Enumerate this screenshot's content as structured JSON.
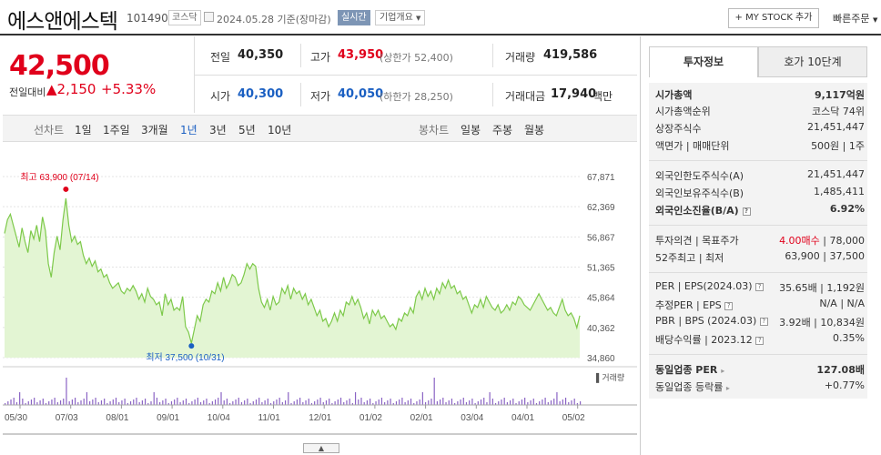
{
  "header": {
    "title": "에스앤에스텍",
    "code": "101490",
    "market": "코스닥",
    "date": "2024.05.28 기준(장마감)",
    "realtime": "실시간",
    "company_overview": "기업개요",
    "mystock": "+ MY STOCK 추가",
    "quick_order": "빠른주문"
  },
  "quote": {
    "price": "42,500",
    "change_label": "전일대비",
    "change_value": "▲2,150",
    "change_pct": "+5.33%",
    "prev_close_label": "전일",
    "prev_close": "40,350",
    "high_label": "고가",
    "high": "43,950",
    "upper_limit": "(상한가 52,400)",
    "volume_label": "거래량",
    "volume": "419,586",
    "open_label": "시가",
    "open": "40,300",
    "low_label": "저가",
    "low": "40,050",
    "lower_limit": "(하한가 28,250)",
    "amount_label": "거래대금",
    "amount": "17,940",
    "amount_unit": "백만"
  },
  "tabs": {
    "line_chart": "선차트",
    "d1": "1일",
    "w1": "1주일",
    "m3": "3개월",
    "y1": "1년",
    "y3": "3년",
    "y5": "5년",
    "y10": "10년",
    "candle": "봉차트",
    "daily": "일봉",
    "weekly": "주봉",
    "monthly": "월봉"
  },
  "chart_data": {
    "type": "area",
    "yticks": [
      "67,871",
      "62,369",
      "56,867",
      "51,365",
      "45,864",
      "40,362",
      "34,860"
    ],
    "ylim": [
      34860,
      67871
    ],
    "xticks": [
      "05/30",
      "07/03",
      "08/01",
      "09/01",
      "10/04",
      "11/01",
      "12/01",
      "01/02",
      "02/01",
      "03/04",
      "04/01",
      "05/02"
    ],
    "high_annotation": "최고 63,900 (07/14)",
    "low_annotation": "최저 37,500 (10/31)",
    "volume_label": "거래량",
    "line_color": "#7dc94a",
    "fill_color": "#e3f5d3",
    "values": [
      57500,
      60000,
      61000,
      59000,
      57000,
      55000,
      58500,
      56000,
      54000,
      58000,
      56500,
      59000,
      56000,
      60500,
      58000,
      52000,
      49500,
      54000,
      57000,
      54500,
      60000,
      63900,
      59000,
      56000,
      57000,
      55500,
      56000,
      53500,
      52000,
      53000,
      51500,
      52500,
      50500,
      51000,
      49500,
      50000,
      48500,
      47500,
      48000,
      48500,
      47000,
      46500,
      47500,
      47000,
      48000,
      47000,
      45500,
      46500,
      45000,
      47500,
      46000,
      45500,
      44500,
      45000,
      42500,
      46500,
      44500,
      45500,
      43500,
      44000,
      43500,
      46000,
      40500,
      39500,
      37500,
      40000,
      42500,
      41500,
      44500,
      45500,
      45000,
      47000,
      46500,
      48500,
      47000,
      49500,
      47500,
      48500,
      50000,
      49500,
      48000,
      48500,
      50000,
      52000,
      51000,
      52000,
      51500,
      47500,
      45000,
      44000,
      45500,
      43500,
      46000,
      44500,
      45000,
      47500,
      46500,
      48000,
      45500,
      47500,
      46500,
      47000,
      45500,
      46500,
      44500,
      45500,
      44000,
      42500,
      43500,
      41500,
      42000,
      40500,
      41500,
      43000,
      41500,
      43500,
      42500,
      45000,
      44500,
      46000,
      44500,
      45500,
      44000,
      42000,
      43000,
      41000,
      43500,
      42500,
      43500,
      42000,
      42500,
      41500,
      40500,
      41000,
      40000,
      42000,
      41500,
      43000,
      42500,
      44000,
      43000,
      46000,
      47000,
      45500,
      47500,
      46000,
      47000,
      45500,
      47500,
      46500,
      48500,
      47500,
      49000,
      47500,
      48000,
      46500,
      47000,
      45500,
      46000,
      44500,
      43000,
      44500,
      44000,
      45500,
      44000,
      46000,
      45000,
      44000,
      43500,
      44500,
      43000,
      43500,
      44500,
      43500,
      45000,
      44500,
      46000,
      45500,
      44500,
      44000,
      43500,
      44500,
      45500,
      46500,
      45500,
      44500,
      43500,
      44000,
      43000,
      42500,
      44000,
      45500,
      43500,
      42500,
      43000,
      42000,
      40300,
      42500
    ]
  },
  "right": {
    "tab_invest": "투자정보",
    "tab_hoga": "호가 10단계",
    "market_cap_label": "시가총액",
    "market_cap": "9,117억원",
    "cap_rank_label": "시가총액순위",
    "cap_rank": "코스닥 74위",
    "shares_label": "상장주식수",
    "shares": "21,451,447",
    "par_label": "액면가 | 매매단위",
    "par": "500원 | 1주",
    "foreign_limit_label": "외국인한도주식수(A)",
    "foreign_limit": "21,451,447",
    "foreign_hold_label": "외국인보유주식수(B)",
    "foreign_hold": "1,485,411",
    "foreign_rate_label": "외국인소진율(B/A)",
    "foreign_rate": "6.92%",
    "opinion_label": "투자의견 | 목표주가",
    "opinion": "4.00매수",
    "target": "78,000",
    "w52_label": "52주최고 | 최저",
    "w52": "63,900 | 37,500",
    "per_label": "PER | EPS(2024.03)",
    "per": "35.65배 | 1,192원",
    "est_per_label": "추정PER | EPS",
    "est_per": "N/A | N/A",
    "pbr_label": "PBR | BPS (2024.03)",
    "pbr": "3.92배 | 10,834원",
    "div_label": "배당수익률 | 2023.12",
    "div": "0.35%",
    "ind_per_label": "동일업종 PER",
    "ind_per": "127.08배",
    "ind_rate_label": "동일업종 등락률",
    "ind_rate": "+0.77%"
  }
}
